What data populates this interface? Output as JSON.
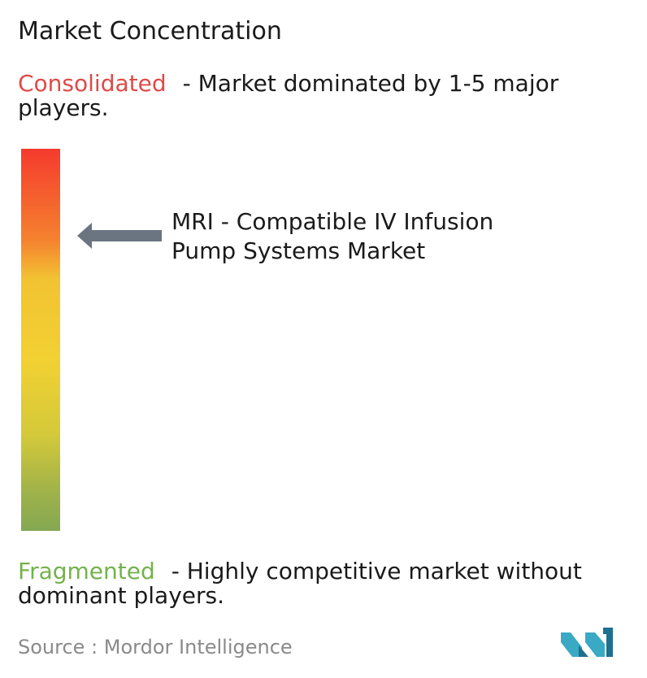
{
  "title": "Market Concentration",
  "consolidated": {
    "term": "Consolidated",
    "description": "- Market dominated by 1-5 major players."
  },
  "fragmented": {
    "term": "Fragmented",
    "description": "- Highly competitive market without dominant players."
  },
  "market_label": "MRI - Compatible IV Infusion Pump Systems Market",
  "source": "Source : Mordor Intelligence",
  "colors": {
    "consolidated": "#e04a47",
    "fragmented": "#74b24c",
    "arrow": "#6b7581",
    "logo_teal": "#3aa9c4",
    "logo_dark": "#1f6f8f"
  },
  "chart_data": {
    "type": "scale",
    "title": "Market Concentration",
    "scale_top_label": "Consolidated",
    "scale_bottom_label": "Fragmented",
    "marker_label": "MRI - Compatible IV Infusion Pump Systems Market",
    "marker_position_from_consolidated": 0.23
  }
}
